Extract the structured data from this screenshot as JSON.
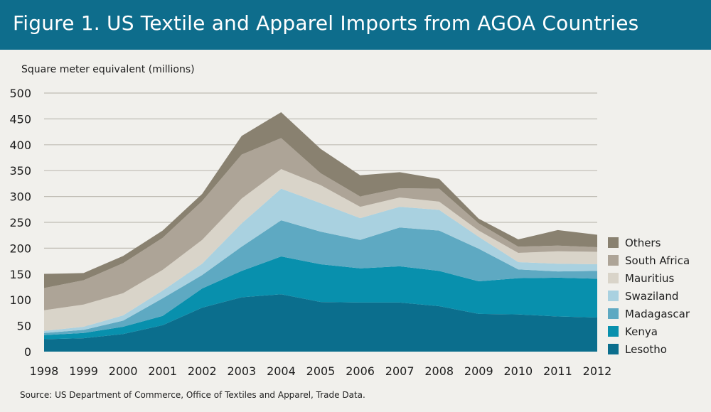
{
  "header": {
    "title": "Figure 1. US Textile and Apparel Imports from AGOA Countries"
  },
  "footer": {
    "source": "Source: US Department of Commerce, Office of Textiles and Apparel, Trade Data."
  },
  "chart_data": {
    "type": "area",
    "stacked": true,
    "title": "Figure 1. US Textile and Apparel Imports from AGOA Countries",
    "ylabel": "Square meter equivalent (millions)",
    "xlabel": "",
    "ylim": [
      0,
      500
    ],
    "yticks": [
      0,
      50,
      100,
      150,
      200,
      250,
      300,
      350,
      400,
      450,
      500
    ],
    "grid": true,
    "legend_position": "right",
    "x": [
      "1998",
      "1999",
      "2000",
      "2001",
      "2002",
      "2003",
      "2004",
      "2005",
      "2006",
      "2007",
      "2008",
      "2009",
      "2010",
      "2011",
      "2012"
    ],
    "series": [
      {
        "name": "Lesotho",
        "color": "#0b6e8d",
        "values": [
          24,
          26,
          34,
          51,
          85,
          105,
          111,
          96,
          95,
          95,
          88,
          73,
          72,
          68,
          66
        ]
      },
      {
        "name": "Kenya",
        "color": "#0890ad",
        "values": [
          8,
          10,
          14,
          18,
          37,
          51,
          73,
          73,
          66,
          70,
          68,
          63,
          70,
          75,
          75
        ]
      },
      {
        "name": "Madagascar",
        "color": "#5ea9c2",
        "values": [
          4,
          6,
          12,
          34,
          26,
          47,
          70,
          63,
          55,
          75,
          78,
          63,
          17,
          12,
          15
        ]
      },
      {
        "name": "Swaziland",
        "color": "#a9d1e0",
        "values": [
          4,
          6,
          10,
          15,
          22,
          45,
          61,
          55,
          42,
          40,
          40,
          23,
          14,
          15,
          13
        ]
      },
      {
        "name": "Mauritius",
        "color": "#d9d4c9",
        "values": [
          40,
          43,
          43,
          40,
          46,
          48,
          38,
          35,
          22,
          18,
          16,
          12,
          18,
          24,
          24
        ]
      },
      {
        "name": "South Africa",
        "color": "#ada497",
        "values": [
          43,
          47,
          58,
          62,
          75,
          85,
          60,
          23,
          20,
          18,
          25,
          14,
          12,
          11,
          9
        ]
      },
      {
        "name": "Others",
        "color": "#898170",
        "values": [
          27,
          14,
          14,
          14,
          14,
          36,
          50,
          47,
          41,
          31,
          19,
          9,
          14,
          30,
          24
        ]
      }
    ],
    "legend_order": [
      "Others",
      "South Africa",
      "Mauritius",
      "Swaziland",
      "Madagascar",
      "Kenya",
      "Lesotho"
    ]
  }
}
